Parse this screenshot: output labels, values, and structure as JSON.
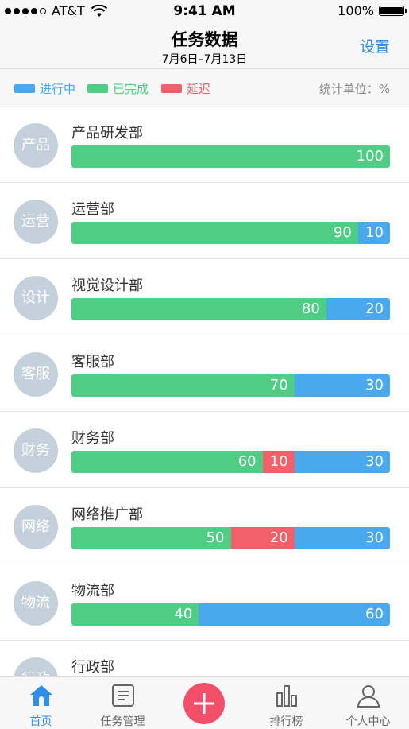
{
  "status_bar": {
    "carrier": "AT&T",
    "time": "9:41 AM",
    "battery": "100%"
  },
  "nav": {
    "title": "任务数据",
    "subtitle": "7月6日–7月13日",
    "action": "设置"
  },
  "legend": {
    "items": [
      {
        "label": "进行中",
        "color": "#4aa9ee"
      },
      {
        "label": "已完成",
        "color": "#4fcd84"
      },
      {
        "label": "延迟",
        "color": "#f26069"
      }
    ],
    "unit": "统计单位：%"
  },
  "colors": {
    "in_progress": "#4aa9ee",
    "completed": "#4fcd84",
    "delayed": "#f26069",
    "accent": "#2f8fe6"
  },
  "departments": [
    {
      "avatar": "产品",
      "name": "产品研发部",
      "completed": 100,
      "delayed": 0,
      "in_progress": 0
    },
    {
      "avatar": "运营",
      "name": "运营部",
      "completed": 90,
      "delayed": 0,
      "in_progress": 10
    },
    {
      "avatar": "设计",
      "name": "视觉设计部",
      "completed": 80,
      "delayed": 0,
      "in_progress": 20
    },
    {
      "avatar": "客服",
      "name": "客服部",
      "completed": 70,
      "delayed": 0,
      "in_progress": 30
    },
    {
      "avatar": "财务",
      "name": "财务部",
      "completed": 60,
      "delayed": 10,
      "in_progress": 30
    },
    {
      "avatar": "网络",
      "name": "网络推广部",
      "completed": 50,
      "delayed": 20,
      "in_progress": 30
    },
    {
      "avatar": "物流",
      "name": "物流部",
      "completed": 40,
      "delayed": 0,
      "in_progress": 60
    },
    {
      "avatar": "行政",
      "name": "行政部",
      "completed": null,
      "delayed": null,
      "in_progress": null
    }
  ],
  "tabs": [
    {
      "label": "首页",
      "icon": "home-icon",
      "active": true
    },
    {
      "label": "任务管理",
      "icon": "task-list-icon",
      "active": false
    },
    {
      "label": "",
      "icon": "add-icon",
      "active": false
    },
    {
      "label": "排行榜",
      "icon": "ranking-icon",
      "active": false
    },
    {
      "label": "个人中心",
      "icon": "profile-icon",
      "active": false
    }
  ]
}
